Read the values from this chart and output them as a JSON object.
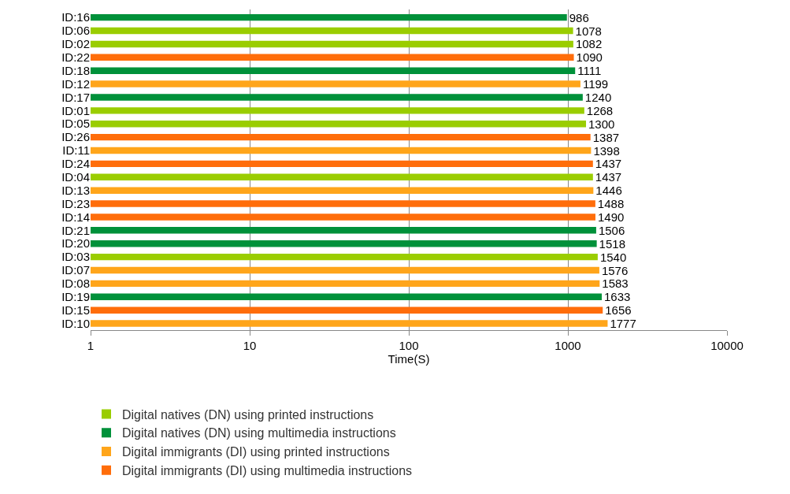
{
  "chart_data": {
    "type": "bar",
    "orientation": "horizontal",
    "log": "x",
    "xlabel": "Time(S)",
    "xlim": [
      1,
      10000
    ],
    "xticks": [
      1,
      10,
      100,
      1000,
      10000
    ],
    "grid": "x",
    "legend": "bottom",
    "data_labels": true,
    "categories": [
      "ID:16",
      "ID:06",
      "ID:02",
      "ID:22",
      "ID:18",
      "ID:12",
      "ID:17",
      "ID:01",
      "ID:05",
      "ID:26",
      "ID:11",
      "ID:24",
      "ID:04",
      "ID:13",
      "ID:23",
      "ID:14",
      "ID:21",
      "ID:20",
      "ID:03",
      "ID:07",
      "ID:08",
      "ID:19",
      "ID:15",
      "ID:10"
    ],
    "series": [
      {
        "name": "Digital natives (DN) using printed instructions",
        "color": "#9acd00",
        "values": [
          null,
          1078,
          1082,
          null,
          null,
          null,
          null,
          1268,
          1300,
          null,
          null,
          null,
          1437,
          null,
          null,
          null,
          null,
          null,
          1540,
          null,
          null,
          null,
          null,
          null
        ]
      },
      {
        "name": "Digital natives (DN) using multimedia instructions",
        "color": "#00913a",
        "values": [
          986,
          null,
          null,
          null,
          1111,
          null,
          1240,
          null,
          null,
          null,
          null,
          null,
          null,
          null,
          null,
          null,
          1506,
          1518,
          null,
          null,
          null,
          1633,
          null,
          null
        ]
      },
      {
        "name": "Digital immigrants (DI) using printed instructions",
        "color": "#ffa51a",
        "values": [
          null,
          null,
          null,
          null,
          null,
          1199,
          null,
          null,
          null,
          null,
          1398,
          null,
          null,
          1446,
          null,
          null,
          null,
          null,
          null,
          1576,
          1583,
          null,
          null,
          1777
        ]
      },
      {
        "name": "Digital immigrants (DI) using multimedia instructions",
        "color": "#ff6d0a",
        "values": [
          null,
          null,
          null,
          1090,
          null,
          null,
          null,
          null,
          null,
          1387,
          null,
          1437,
          null,
          null,
          1488,
          1490,
          null,
          null,
          null,
          null,
          null,
          null,
          1656,
          null
        ]
      }
    ]
  }
}
